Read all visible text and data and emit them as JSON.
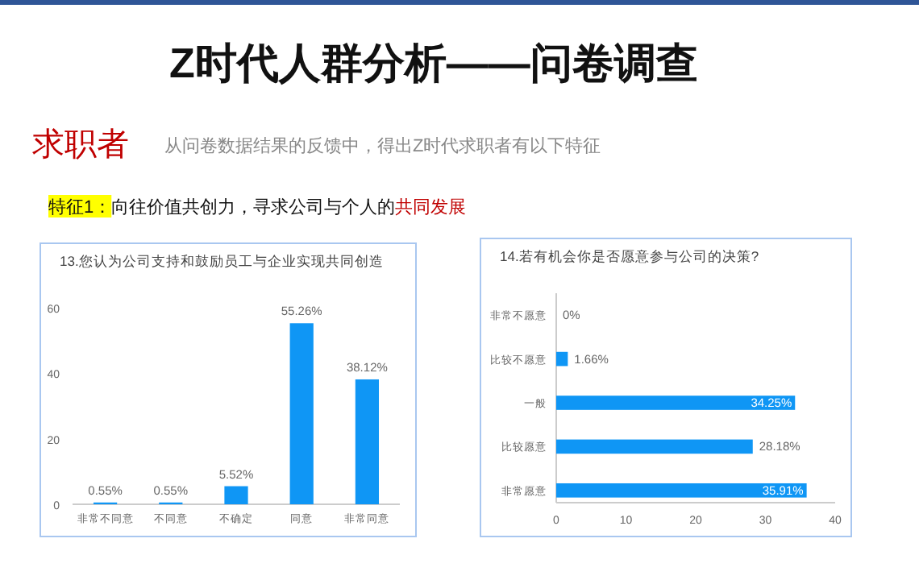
{
  "chart_data": [
    {
      "type": "other",
      "title": "Z时代人群分析——问卷调查",
      "subtitle": "从问卷数据结果的反馈中，得出Z时代求职者有以下特征",
      "annotations": [
        "求职者",
        "特征1：",
        "向往价值共创力，寻求公司与个人的",
        "共同发展"
      ]
    },
    {
      "type": "bar",
      "title": "13.您认为公司支持和鼓励员工与企业实现共同创造",
      "categories": [
        "非常不同意",
        "不同意",
        "不确定",
        "同意",
        "非常同意"
      ],
      "values": [
        0.55,
        0.55,
        5.52,
        55.26,
        38.12
      ],
      "value_labels": [
        "0.55%",
        "0.55%",
        "5.52%",
        "55.26%",
        "38.12%"
      ],
      "color": "#0f96f5",
      "ylim": [
        0,
        60
      ],
      "yticks": [
        0,
        20,
        40,
        60
      ],
      "grid": false
    },
    {
      "type": "bar",
      "orientation": "horizontal",
      "title": "14.若有机会你是否愿意参与公司的决策?",
      "categories": [
        "非常不愿意",
        "比较不愿意",
        "一般",
        "比较愿意",
        "非常愿意"
      ],
      "values": [
        0,
        1.66,
        34.25,
        28.18,
        35.91
      ],
      "value_labels": [
        "0%",
        "1.66%",
        "34.25%",
        "28.18%",
        "35.91%"
      ],
      "color": "#0f96f5",
      "xlim": [
        0,
        40
      ],
      "xticks": [
        0,
        10,
        20,
        30,
        40
      ],
      "grid": false
    }
  ]
}
